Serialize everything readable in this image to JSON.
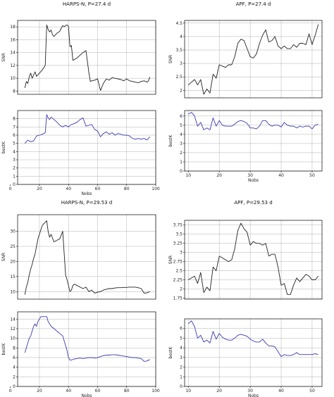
{
  "colors": {
    "snr_line": "#222222",
    "bestk_line": "#3a3ab0",
    "grid": "#b0b0b0",
    "frame": "#000000"
  },
  "chart_data": [
    {
      "id": "harpsn-27-snr",
      "type": "line",
      "title": "HARPS-N, P=27.4 d",
      "xlabel": "",
      "ylabel": "SNR",
      "grid": true,
      "xlim": [
        5,
        100
      ],
      "ylim": [
        7.5,
        19
      ],
      "xticks": [],
      "yticks": [
        8,
        10,
        12,
        14,
        16,
        18
      ],
      "x": [
        10,
        11,
        12,
        13,
        14,
        15,
        16,
        17,
        18,
        20,
        22,
        24,
        25,
        26,
        27,
        28,
        29,
        30,
        32,
        34,
        35,
        36,
        37,
        38,
        39,
        40,
        41,
        42,
        43,
        44,
        46,
        48,
        50,
        52,
        54,
        55,
        56,
        58,
        60,
        62,
        64,
        66,
        68,
        70,
        72,
        74,
        76,
        78,
        80,
        82,
        84,
        86,
        88,
        90,
        92,
        94,
        95,
        96
      ],
      "values": [
        8.5,
        9.5,
        9.2,
        10.2,
        10.8,
        10.0,
        10.5,
        11.0,
        10.3,
        10.8,
        11.3,
        12.0,
        18.3,
        17.6,
        17.2,
        17.5,
        16.8,
        16.5,
        17.0,
        17.3,
        17.8,
        18.2,
        18.0,
        18.2,
        18.3,
        18.1,
        14.9,
        15.1,
        12.8,
        12.9,
        13.2,
        13.6,
        14.0,
        14.3,
        10.9,
        9.5,
        9.6,
        9.7,
        9.9,
        8.1,
        9.2,
        9.9,
        9.7,
        10.1,
        10.0,
        9.9,
        9.8,
        9.6,
        9.9,
        9.6,
        9.5,
        9.4,
        9.3,
        9.5,
        9.6,
        9.4,
        9.6,
        10.2
      ]
    },
    {
      "id": "harpsn-27-bestk",
      "type": "line",
      "title": "",
      "xlabel": "Nobs",
      "ylabel": "bestK",
      "grid": true,
      "xlim": [
        5,
        100
      ],
      "ylim": [
        0,
        9
      ],
      "xticks": [
        0,
        20,
        40,
        60,
        80,
        100
      ],
      "yticks": [
        0,
        1,
        2,
        3,
        4,
        5,
        6,
        7,
        8
      ],
      "x": [
        10,
        12,
        14,
        16,
        18,
        20,
        22,
        24,
        25,
        26,
        27,
        28,
        30,
        32,
        34,
        36,
        38,
        40,
        42,
        44,
        46,
        48,
        50,
        52,
        54,
        56,
        58,
        60,
        62,
        64,
        66,
        68,
        70,
        72,
        74,
        76,
        78,
        80,
        82,
        84,
        86,
        88,
        90,
        92,
        94,
        96
      ],
      "values": [
        5.0,
        5.4,
        5.2,
        5.3,
        5.9,
        6.0,
        6.1,
        6.3,
        8.5,
        8.1,
        7.9,
        8.2,
        7.9,
        7.6,
        7.2,
        7.0,
        7.2,
        7.0,
        7.3,
        7.4,
        7.6,
        7.9,
        8.1,
        7.1,
        7.2,
        7.3,
        6.7,
        6.5,
        5.8,
        6.2,
        6.4,
        6.1,
        6.3,
        6.0,
        6.2,
        6.1,
        6.0,
        6.0,
        5.9,
        5.6,
        5.5,
        5.6,
        5.5,
        5.6,
        5.4,
        5.8
      ]
    },
    {
      "id": "apf-27-snr",
      "type": "line",
      "title": "APF, P=27.4 d",
      "xlabel": "",
      "ylabel": "SNR",
      "grid": true,
      "xlim": [
        8.8,
        53.2
      ],
      "ylim": [
        1.72,
        4.6
      ],
      "xticks": [],
      "yticks": [
        2.0,
        2.5,
        3.0,
        3.5,
        4.0,
        4.5
      ],
      "x": [
        10,
        11,
        12,
        13,
        14,
        15,
        16,
        17,
        18,
        19,
        20,
        21,
        22,
        23,
        24,
        25,
        26,
        27,
        28,
        29,
        30,
        31,
        32,
        33,
        34,
        35,
        36,
        37,
        38,
        39,
        40,
        41,
        42,
        43,
        44,
        45,
        46,
        47,
        48,
        49,
        50,
        51,
        52
      ],
      "values": [
        2.2,
        2.3,
        2.4,
        2.2,
        2.4,
        1.85,
        2.05,
        1.9,
        2.6,
        2.45,
        2.95,
        2.9,
        2.85,
        2.95,
        2.95,
        3.25,
        3.75,
        3.9,
        3.85,
        3.55,
        3.25,
        3.2,
        3.35,
        3.75,
        4.05,
        4.25,
        3.8,
        3.85,
        4.0,
        3.65,
        3.55,
        3.65,
        3.55,
        3.55,
        3.7,
        3.6,
        3.75,
        3.75,
        3.7,
        4.1,
        3.7,
        4.05,
        4.45
      ]
    },
    {
      "id": "apf-27-bestk",
      "type": "line",
      "title": "",
      "xlabel": "Nobs",
      "ylabel": "bestK",
      "grid": true,
      "xlim": [
        8.8,
        53.2
      ],
      "ylim": [
        0,
        6.6
      ],
      "xticks": [
        10,
        20,
        30,
        40,
        50
      ],
      "yticks": [
        0,
        1,
        2,
        3,
        4,
        5,
        6
      ],
      "x": [
        10,
        11,
        12,
        13,
        14,
        15,
        16,
        17,
        18,
        19,
        20,
        21,
        22,
        23,
        24,
        25,
        26,
        27,
        28,
        29,
        30,
        31,
        32,
        33,
        34,
        35,
        36,
        37,
        38,
        39,
        40,
        41,
        42,
        43,
        44,
        45,
        46,
        47,
        48,
        49,
        50,
        51,
        52
      ],
      "values": [
        6.2,
        6.4,
        6.0,
        4.9,
        5.3,
        4.5,
        4.7,
        4.5,
        5.8,
        4.9,
        5.5,
        5.0,
        4.9,
        4.9,
        4.9,
        5.1,
        5.4,
        5.5,
        5.4,
        5.2,
        4.7,
        4.7,
        4.6,
        4.9,
        5.5,
        5.5,
        5.1,
        4.9,
        5.0,
        5.0,
        4.8,
        5.3,
        5.0,
        4.9,
        4.9,
        4.7,
        4.9,
        4.8,
        4.9,
        4.9,
        4.6,
        5.0,
        5.1
      ]
    },
    {
      "id": "harpsn-29-snr",
      "type": "line",
      "title": "HARPS-N, P=29.53 d",
      "xlabel": "",
      "ylabel": "SNR",
      "grid": true,
      "xlim": [
        5,
        100
      ],
      "ylim": [
        7.5,
        35.5
      ],
      "xticks": [],
      "yticks": [
        10,
        15,
        20,
        25,
        30
      ],
      "x": [
        10,
        11,
        12,
        13,
        14,
        15,
        16,
        17,
        18,
        19,
        20,
        21,
        22,
        23,
        24,
        25,
        26,
        27,
        28,
        30,
        32,
        34,
        36,
        38,
        39,
        40,
        41,
        42,
        43,
        44,
        46,
        48,
        50,
        52,
        54,
        56,
        58,
        60,
        62,
        64,
        66,
        68,
        70,
        72,
        74,
        76,
        78,
        80,
        82,
        84,
        86,
        88,
        90,
        92,
        94,
        96
      ],
      "values": [
        9.0,
        11.5,
        13.0,
        15.5,
        17.5,
        19.0,
        21.0,
        22.5,
        25.0,
        27.5,
        29.0,
        30.5,
        32.0,
        32.5,
        33.0,
        33.5,
        30.0,
        28.0,
        29.0,
        26.5,
        27.0,
        27.5,
        30.0,
        15.5,
        14.0,
        12.0,
        10.0,
        10.5,
        12.0,
        12.5,
        12.0,
        11.5,
        11.0,
        11.5,
        10.0,
        10.5,
        9.5,
        9.8,
        10.0,
        10.5,
        10.8,
        11.0,
        11.0,
        11.2,
        11.3,
        11.3,
        11.4,
        11.4,
        11.5,
        11.5,
        11.5,
        11.3,
        11.0,
        9.5,
        9.6,
        10.0
      ]
    },
    {
      "id": "harpsn-29-bestk",
      "type": "line",
      "title": "",
      "xlabel": "Nobs",
      "ylabel": "bestK",
      "grid": true,
      "xlim": [
        5,
        100
      ],
      "ylim": [
        0,
        15.5
      ],
      "xticks": [
        0,
        20,
        40,
        60,
        80,
        100
      ],
      "yticks": [
        0,
        2,
        4,
        6,
        8,
        10,
        12,
        14
      ],
      "x": [
        10,
        11,
        12,
        13,
        14,
        15,
        16,
        17,
        18,
        19,
        20,
        21,
        22,
        23,
        24,
        25,
        26,
        27,
        28,
        30,
        32,
        34,
        36,
        38,
        39,
        40,
        41,
        42,
        44,
        46,
        48,
        50,
        52,
        54,
        56,
        58,
        60,
        62,
        64,
        66,
        68,
        70,
        72,
        74,
        76,
        78,
        80,
        82,
        84,
        86,
        88,
        90,
        92,
        94,
        96
      ],
      "values": [
        7.0,
        8.0,
        9.0,
        10.0,
        10.5,
        11.5,
        12.5,
        13.0,
        12.5,
        13.5,
        14.0,
        14.5,
        14.5,
        14.5,
        14.5,
        14.5,
        13.5,
        13.0,
        12.5,
        12.0,
        11.5,
        11.0,
        10.5,
        8.5,
        7.5,
        6.0,
        5.5,
        5.5,
        5.7,
        5.8,
        5.9,
        5.8,
        5.9,
        6.0,
        6.0,
        5.9,
        6.0,
        6.2,
        6.4,
        6.5,
        6.5,
        6.6,
        6.6,
        6.5,
        6.4,
        6.3,
        6.2,
        6.1,
        6.0,
        6.0,
        5.9,
        5.8,
        5.2,
        5.3,
        5.6
      ]
    },
    {
      "id": "apf-29-snr",
      "type": "line",
      "title": "APF, P=29.53 d",
      "xlabel": "",
      "ylabel": "SNR",
      "grid": true,
      "xlim": [
        8.8,
        53.2
      ],
      "ylim": [
        1.72,
        3.88
      ],
      "xticks": [],
      "yticks": [
        1.75,
        2.0,
        2.25,
        2.5,
        2.75,
        3.0,
        3.25,
        3.5,
        3.75
      ],
      "x": [
        10,
        11,
        12,
        13,
        14,
        15,
        16,
        17,
        18,
        19,
        20,
        21,
        22,
        23,
        24,
        25,
        26,
        27,
        28,
        29,
        30,
        31,
        32,
        33,
        34,
        35,
        36,
        37,
        38,
        39,
        40,
        41,
        42,
        43,
        44,
        45,
        46,
        47,
        48,
        49,
        50,
        51,
        52
      ],
      "values": [
        2.25,
        2.3,
        2.35,
        2.15,
        2.45,
        1.9,
        2.05,
        1.95,
        2.6,
        2.5,
        2.9,
        2.85,
        2.8,
        2.75,
        2.8,
        3.1,
        3.6,
        3.8,
        3.65,
        3.55,
        3.2,
        3.3,
        3.25,
        3.25,
        3.2,
        3.25,
        2.9,
        2.95,
        2.95,
        2.6,
        2.1,
        2.15,
        1.85,
        1.85,
        2.1,
        2.3,
        2.2,
        2.3,
        2.4,
        2.35,
        2.25,
        2.25,
        2.35
      ]
    },
    {
      "id": "apf-29-bestk",
      "type": "line",
      "title": "",
      "xlabel": "Nobs",
      "ylabel": "bestK",
      "grid": true,
      "xlim": [
        8.8,
        53.2
      ],
      "ylim": [
        0,
        7.0
      ],
      "xticks": [
        10,
        20,
        30,
        40,
        50
      ],
      "yticks": [
        0,
        1,
        2,
        3,
        4,
        5,
        6
      ],
      "x": [
        10,
        11,
        12,
        13,
        14,
        15,
        16,
        17,
        18,
        19,
        20,
        21,
        22,
        23,
        24,
        25,
        26,
        27,
        28,
        29,
        30,
        31,
        32,
        33,
        34,
        35,
        36,
        37,
        38,
        39,
        40,
        41,
        42,
        43,
        44,
        45,
        46,
        47,
        48,
        49,
        50,
        51,
        52
      ],
      "values": [
        6.5,
        6.8,
        6.2,
        5.0,
        5.3,
        4.6,
        4.8,
        4.5,
        5.7,
        4.9,
        5.5,
        5.1,
        4.9,
        4.8,
        4.8,
        5.0,
        5.3,
        5.4,
        5.3,
        5.2,
        4.9,
        4.7,
        4.6,
        4.6,
        4.9,
        4.5,
        4.2,
        4.2,
        4.1,
        3.6,
        3.1,
        3.3,
        3.2,
        3.2,
        3.3,
        3.5,
        3.3,
        3.3,
        3.3,
        3.3,
        3.3,
        3.4,
        3.3
      ]
    }
  ]
}
